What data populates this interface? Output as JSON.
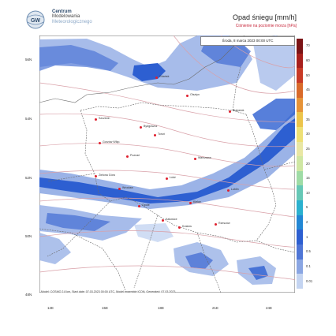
{
  "header": {
    "institution": [
      "Centrum",
      "Modelowania",
      "Meteorologicznego"
    ],
    "title": "Opad śniegu [mm/h]",
    "subtitle": "Ciśnienie na poziomie morza [hPa]",
    "datetime": "Środa, 8 marca 2023 00:00 UTC"
  },
  "axes": {
    "lat_labels": [
      "56N",
      "54N",
      "52N",
      "50N",
      "48N"
    ],
    "lon_labels": [
      "12E",
      "15E",
      "18E",
      "21E",
      "24E"
    ]
  },
  "legend": {
    "labels": [
      "70",
      "60",
      "50",
      "45",
      "40",
      "35",
      "30",
      "25",
      "20",
      "15",
      "10",
      "5",
      "2",
      "1",
      "0.5",
      "0.1",
      "0.01"
    ],
    "colors": [
      "#7b1416",
      "#a8201d",
      "#c83a26",
      "#d96a2a",
      "#e69338",
      "#ecc44b",
      "#eee075",
      "#e9e7a4",
      "#cfe7a3",
      "#9fdca6",
      "#66c8b6",
      "#2bb1cf",
      "#2287d4",
      "#2d5fd1",
      "#4f76d6",
      "#8aa6e3",
      "#c4d4f1"
    ]
  },
  "footer": {
    "credit": "Model: COSMO 2.8 km, Start date: 07.03.2023 00:00 UTC, Model ensemble ICON, Generated: 07.03.2023"
  },
  "colors": {
    "isobar": "#d9a0a8",
    "border": "#6b6b6b",
    "snow_dark": "#2d5fd1",
    "snow_light": "#8aa6e3",
    "snow_pale": "#c4d4f1",
    "map_bg": "#ffffff"
  },
  "cities": [
    {
      "name": "Gdańsk"
    },
    {
      "name": "Olsztyn"
    },
    {
      "name": "Białystok"
    },
    {
      "name": "Szczecin"
    },
    {
      "name": "Bydgoszcz"
    },
    {
      "name": "Toruń"
    },
    {
      "name": "Gorzów Wlkp."
    },
    {
      "name": "Poznań"
    },
    {
      "name": "Warszawa"
    },
    {
      "name": "Zielona Góra"
    },
    {
      "name": "Łódź"
    },
    {
      "name": "Wrocław"
    },
    {
      "name": "Lublin"
    },
    {
      "name": "Opole"
    },
    {
      "name": "Kielce"
    },
    {
      "name": "Katowice"
    },
    {
      "name": "Kraków"
    },
    {
      "name": "Rzeszów"
    }
  ]
}
